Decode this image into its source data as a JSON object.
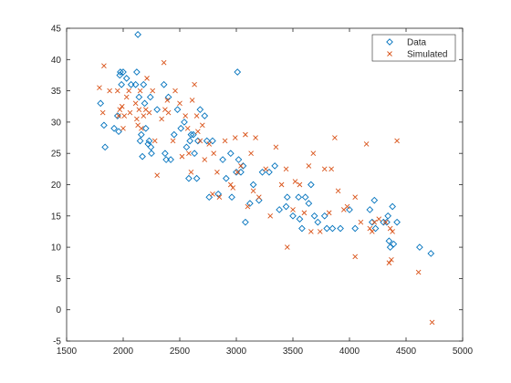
{
  "chart_data": {
    "type": "scatter",
    "title": "",
    "xlabel": "",
    "ylabel": "",
    "xlim": [
      1500,
      5000
    ],
    "ylim": [
      -5,
      45
    ],
    "x_ticks": [
      1500,
      2000,
      2500,
      3000,
      3500,
      4000,
      4500,
      5000
    ],
    "y_ticks": [
      -5,
      0,
      5,
      10,
      15,
      20,
      25,
      30,
      35,
      40,
      45
    ],
    "grid": false,
    "legend_position": "top-right",
    "series": [
      {
        "name": "Data",
        "marker": "diamond",
        "color": "#0072bd",
        "points": [
          [
            1800,
            33
          ],
          [
            1830,
            29.5
          ],
          [
            1840,
            26
          ],
          [
            1920,
            29
          ],
          [
            1950,
            31
          ],
          [
            1960,
            28.5
          ],
          [
            1970,
            37.5
          ],
          [
            1975,
            38
          ],
          [
            1985,
            36
          ],
          [
            2000,
            38
          ],
          [
            2030,
            37
          ],
          [
            2070,
            36
          ],
          [
            2110,
            36
          ],
          [
            2120,
            38
          ],
          [
            2130,
            44
          ],
          [
            2140,
            34
          ],
          [
            2150,
            27
          ],
          [
            2160,
            28
          ],
          [
            2170,
            24.5
          ],
          [
            2180,
            36
          ],
          [
            2190,
            33
          ],
          [
            2200,
            29
          ],
          [
            2220,
            26.5
          ],
          [
            2230,
            27
          ],
          [
            2240,
            34
          ],
          [
            2245,
            26
          ],
          [
            2250,
            25
          ],
          [
            2300,
            32
          ],
          [
            2360,
            36
          ],
          [
            2370,
            25
          ],
          [
            2380,
            24
          ],
          [
            2400,
            34
          ],
          [
            2420,
            24
          ],
          [
            2450,
            28
          ],
          [
            2480,
            32
          ],
          [
            2510,
            29
          ],
          [
            2540,
            30
          ],
          [
            2560,
            26
          ],
          [
            2580,
            21
          ],
          [
            2590,
            27
          ],
          [
            2600,
            28
          ],
          [
            2620,
            28
          ],
          [
            2630,
            25
          ],
          [
            2650,
            21
          ],
          [
            2660,
            27
          ],
          [
            2680,
            32
          ],
          [
            2720,
            31
          ],
          [
            2740,
            27
          ],
          [
            2760,
            18
          ],
          [
            2790,
            27
          ],
          [
            2840,
            18.5
          ],
          [
            2880,
            24
          ],
          [
            2910,
            21
          ],
          [
            2950,
            25
          ],
          [
            2960,
            18
          ],
          [
            3000,
            22
          ],
          [
            3010,
            38
          ],
          [
            3020,
            24
          ],
          [
            3040,
            22
          ],
          [
            3060,
            23
          ],
          [
            3080,
            14
          ],
          [
            3120,
            17
          ],
          [
            3150,
            20
          ],
          [
            3200,
            17.5
          ],
          [
            3230,
            22
          ],
          [
            3290,
            22
          ],
          [
            3340,
            23
          ],
          [
            3380,
            16
          ],
          [
            3440,
            16.5
          ],
          [
            3450,
            18
          ],
          [
            3500,
            15
          ],
          [
            3550,
            18
          ],
          [
            3560,
            14.5
          ],
          [
            3580,
            13
          ],
          [
            3610,
            18
          ],
          [
            3640,
            17
          ],
          [
            3660,
            20
          ],
          [
            3690,
            15
          ],
          [
            3720,
            14
          ],
          [
            3780,
            15
          ],
          [
            3800,
            13
          ],
          [
            3850,
            13
          ],
          [
            3920,
            13
          ],
          [
            4000,
            16
          ],
          [
            4050,
            13
          ],
          [
            4180,
            16
          ],
          [
            4200,
            14
          ],
          [
            4220,
            17.5
          ],
          [
            4230,
            13
          ],
          [
            4300,
            14
          ],
          [
            4330,
            14
          ],
          [
            4340,
            15
          ],
          [
            4350,
            11
          ],
          [
            4360,
            10
          ],
          [
            4380,
            16.5
          ],
          [
            4390,
            10.5
          ],
          [
            4420,
            14
          ],
          [
            4620,
            10
          ],
          [
            4720,
            9
          ]
        ]
      },
      {
        "name": "Simulated",
        "marker": "x",
        "color": "#d95319",
        "points": [
          [
            1790,
            35.5
          ],
          [
            1820,
            31.5
          ],
          [
            1830,
            39
          ],
          [
            1880,
            35
          ],
          [
            1950,
            35
          ],
          [
            1960,
            31
          ],
          [
            1970,
            32
          ],
          [
            1990,
            32.5
          ],
          [
            2000,
            29
          ],
          [
            2010,
            31
          ],
          [
            2030,
            34
          ],
          [
            2050,
            35
          ],
          [
            2060,
            31.5
          ],
          [
            2110,
            33
          ],
          [
            2120,
            30.5
          ],
          [
            2130,
            29.5
          ],
          [
            2140,
            32
          ],
          [
            2150,
            35
          ],
          [
            2160,
            29
          ],
          [
            2180,
            31
          ],
          [
            2200,
            32
          ],
          [
            2210,
            37
          ],
          [
            2230,
            31.5
          ],
          [
            2260,
            35
          ],
          [
            2280,
            27
          ],
          [
            2300,
            21.5
          ],
          [
            2340,
            30.5
          ],
          [
            2360,
            39.5
          ],
          [
            2370,
            32
          ],
          [
            2390,
            33.5
          ],
          [
            2400,
            31.5
          ],
          [
            2440,
            27
          ],
          [
            2460,
            35
          ],
          [
            2500,
            33
          ],
          [
            2520,
            24.5
          ],
          [
            2550,
            31
          ],
          [
            2570,
            29
          ],
          [
            2580,
            25
          ],
          [
            2600,
            22
          ],
          [
            2610,
            33.5
          ],
          [
            2630,
            36
          ],
          [
            2650,
            31
          ],
          [
            2660,
            28.5
          ],
          [
            2680,
            27
          ],
          [
            2700,
            29.5
          ],
          [
            2720,
            24
          ],
          [
            2760,
            26.5
          ],
          [
            2790,
            18.5
          ],
          [
            2800,
            25
          ],
          [
            2830,
            22
          ],
          [
            2850,
            18
          ],
          [
            2900,
            27
          ],
          [
            2950,
            20
          ],
          [
            2970,
            19.5
          ],
          [
            2990,
            27.5
          ],
          [
            3010,
            22
          ],
          [
            3040,
            23
          ],
          [
            3080,
            28
          ],
          [
            3100,
            16.5
          ],
          [
            3130,
            25
          ],
          [
            3150,
            19
          ],
          [
            3170,
            27.5
          ],
          [
            3200,
            18
          ],
          [
            3260,
            22.5
          ],
          [
            3300,
            15
          ],
          [
            3350,
            26
          ],
          [
            3400,
            20
          ],
          [
            3440,
            22.5
          ],
          [
            3450,
            10
          ],
          [
            3500,
            16
          ],
          [
            3520,
            20.5
          ],
          [
            3560,
            20
          ],
          [
            3600,
            15.5
          ],
          [
            3640,
            23
          ],
          [
            3660,
            12.5
          ],
          [
            3680,
            25
          ],
          [
            3740,
            12.5
          ],
          [
            3780,
            22.5
          ],
          [
            3820,
            15.5
          ],
          [
            3840,
            22.5
          ],
          [
            3870,
            27.5
          ],
          [
            3900,
            19
          ],
          [
            3950,
            16
          ],
          [
            3980,
            16.5
          ],
          [
            4050,
            8.5
          ],
          [
            4050,
            18
          ],
          [
            4100,
            14
          ],
          [
            4150,
            26.5
          ],
          [
            4180,
            13
          ],
          [
            4200,
            12.5
          ],
          [
            4220,
            14
          ],
          [
            4260,
            14.5
          ],
          [
            4320,
            14
          ],
          [
            4350,
            7.5
          ],
          [
            4360,
            13
          ],
          [
            4370,
            8
          ],
          [
            4380,
            12.5
          ],
          [
            4420,
            27
          ],
          [
            4610,
            6
          ],
          [
            4730,
            -2
          ]
        ]
      }
    ]
  }
}
